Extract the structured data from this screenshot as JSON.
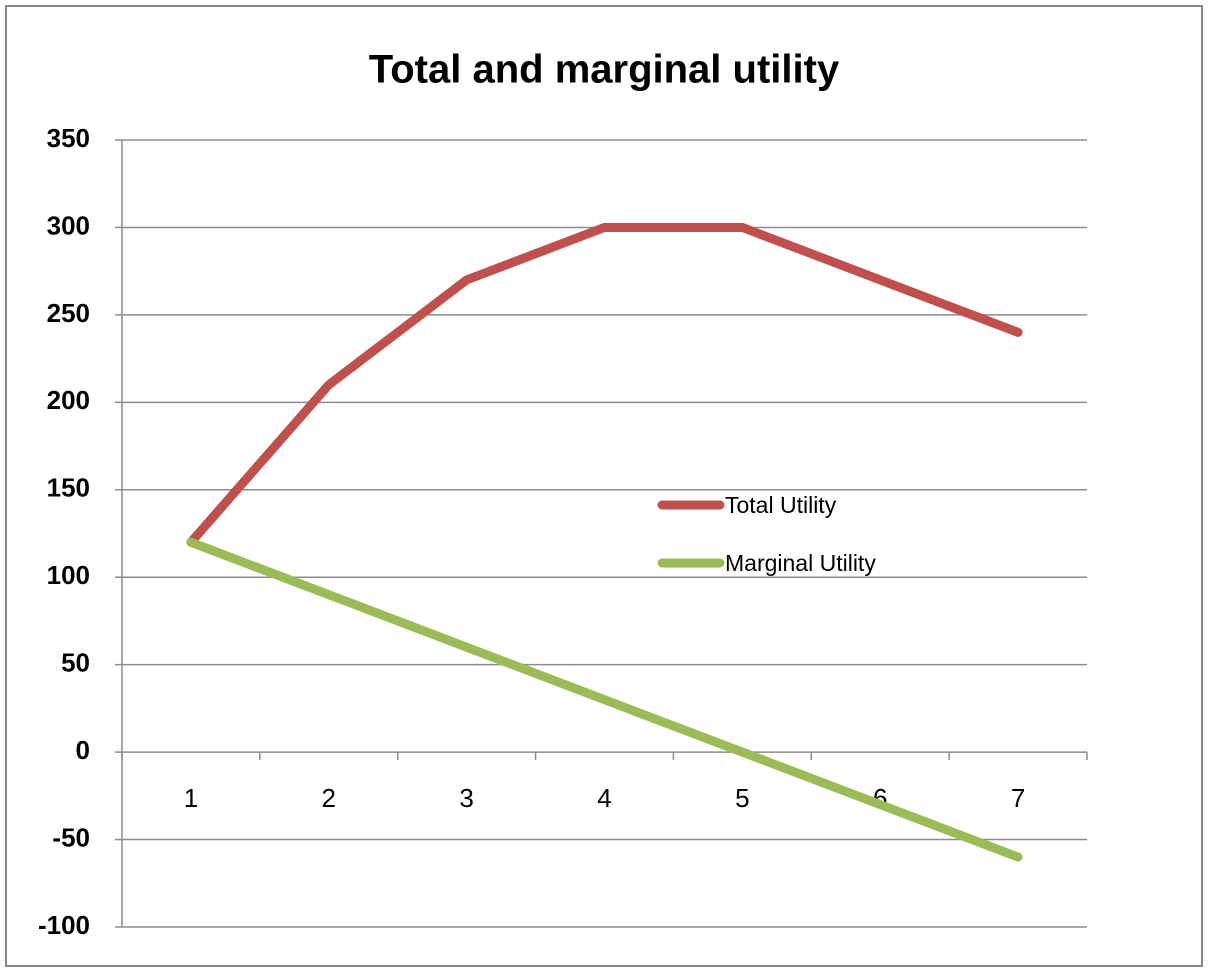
{
  "chart_data": {
    "type": "line",
    "title": "Total and marginal utility",
    "categories": [
      "1",
      "2",
      "3",
      "4",
      "5",
      "6",
      "7"
    ],
    "series": [
      {
        "name": "Total Utility",
        "color": "#c0504d",
        "values": [
          120,
          210,
          270,
          300,
          300,
          270,
          240
        ]
      },
      {
        "name": "Marginal Utility",
        "color": "#9bbb59",
        "values": [
          120,
          90,
          60,
          30,
          0,
          -30,
          -60
        ]
      }
    ],
    "ylim": [
      -100,
      350
    ],
    "yticks": [
      -100,
      -50,
      0,
      50,
      100,
      150,
      200,
      250,
      300,
      350
    ],
    "grid": true
  }
}
